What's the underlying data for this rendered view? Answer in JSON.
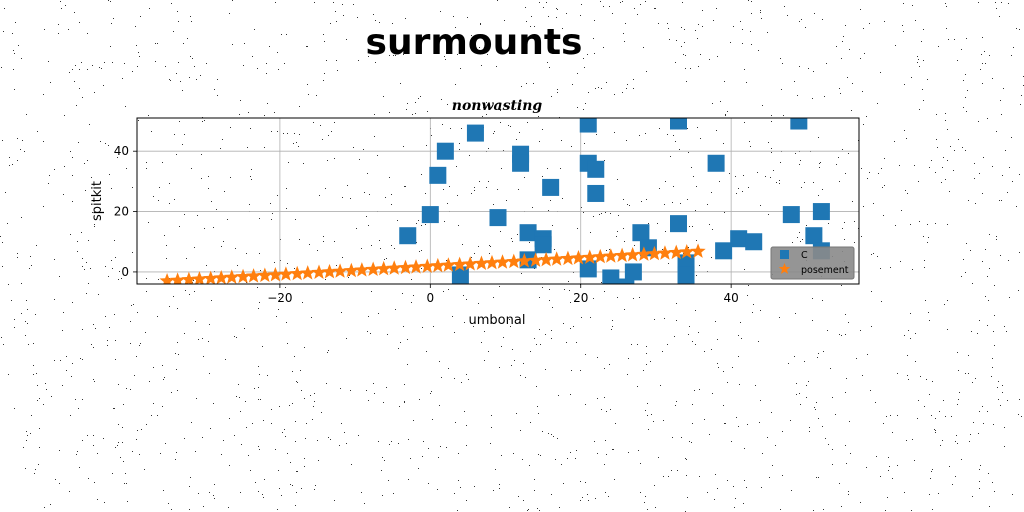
{
  "figure": {
    "suptitle": "surmounts"
  },
  "chart_data": {
    "type": "scatter",
    "title": "nonwasting",
    "xlabel": "umbonal",
    "ylabel": "spitkit",
    "xlim": [
      -39,
      57
    ],
    "ylim": [
      -4,
      51
    ],
    "xticks": [
      -20,
      0,
      20,
      40
    ],
    "yticks": [
      0,
      20,
      40
    ],
    "grid": true,
    "legend": {
      "position": "lower-right"
    },
    "series": [
      {
        "name": "C",
        "color": "#1f77b4",
        "marker": "square",
        "x": [
          -3,
          0,
          1,
          2,
          4,
          6,
          9,
          12,
          12,
          13,
          13,
          15,
          15,
          16,
          21,
          21,
          21,
          22,
          22,
          24,
          26,
          27,
          28,
          29,
          33,
          33,
          34,
          34,
          38,
          39,
          41,
          43,
          48,
          49,
          51,
          52,
          52
        ],
        "y": [
          12,
          19,
          32,
          40,
          -1,
          46,
          18,
          39,
          36,
          13,
          4,
          11,
          9,
          28,
          49,
          36,
          1,
          34,
          26,
          -2,
          -5,
          0,
          13,
          8,
          50,
          16,
          3,
          -1,
          36,
          7,
          11,
          10,
          19,
          50,
          12,
          7,
          20
        ]
      },
      {
        "name": "posement",
        "color": "#ff7f0e",
        "marker": "star",
        "x": [
          -35,
          -33.6,
          -32.1,
          -30.7,
          -29.2,
          -27.8,
          -26.4,
          -24.9,
          -23.5,
          -22,
          -20.6,
          -19.2,
          -17.7,
          -16.3,
          -14.8,
          -13.4,
          -12,
          -10.5,
          -9.1,
          -7.6,
          -6.2,
          -4.8,
          -3.3,
          -1.9,
          -0.4,
          1,
          2.4,
          3.9,
          5.3,
          6.8,
          8.2,
          9.6,
          11.1,
          12.5,
          14,
          15.4,
          16.8,
          18.3,
          19.7,
          21.2,
          22.6,
          24,
          25.5,
          26.9,
          28.4,
          29.8,
          31.2,
          32.7,
          34.1,
          35.6
        ],
        "y": [
          -3,
          -2.8,
          -2.6,
          -2.4,
          -2.2,
          -2,
          -1.8,
          -1.6,
          -1.4,
          -1.2,
          -1,
          -0.8,
          -0.6,
          -0.4,
          -0.2,
          0,
          0.2,
          0.4,
          0.6,
          0.8,
          1,
          1.2,
          1.4,
          1.6,
          1.8,
          2,
          2.2,
          2.4,
          2.6,
          2.8,
          3,
          3.2,
          3.4,
          3.6,
          3.8,
          4,
          4.2,
          4.4,
          4.6,
          4.8,
          5,
          5.2,
          5.4,
          5.6,
          5.8,
          6,
          6.2,
          6.4,
          6.6,
          6.8
        ]
      }
    ]
  }
}
